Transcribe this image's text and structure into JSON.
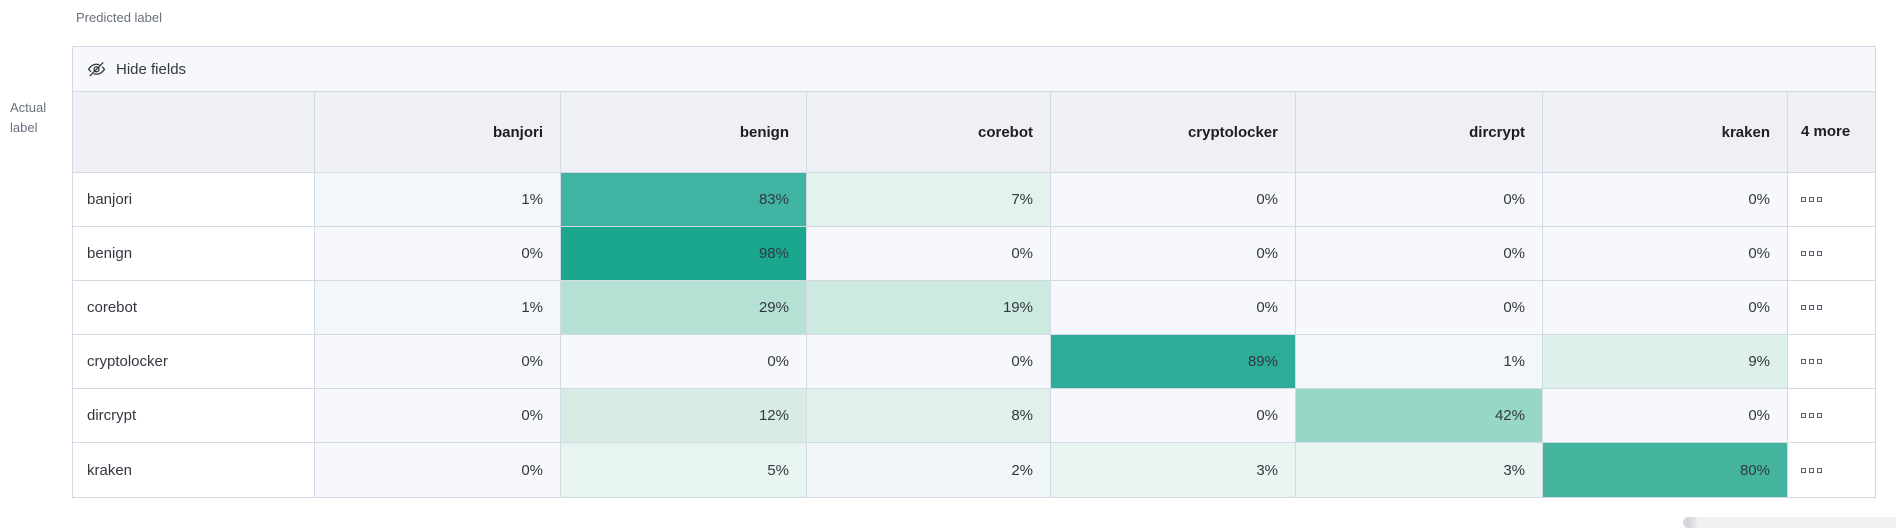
{
  "labels": {
    "predicted": "Predicted label",
    "actual": "Actual label"
  },
  "toolbar": {
    "hide_fields": "Hide fields",
    "icon": "eye-closed-icon"
  },
  "matrix": {
    "columns": [
      "banjori",
      "benign",
      "corebot",
      "cryptolocker",
      "dircrypt",
      "kraken"
    ],
    "more_header": "4 more",
    "more_cell_icon": "boxes-horizontal-icon",
    "rows": [
      {
        "label": "banjori",
        "cells": [
          {
            "text": "1%",
            "bg": "#f2f7f9"
          },
          {
            "text": "83%",
            "bg": "#41b3a2"
          },
          {
            "text": "7%",
            "bg": "#e2f2ed"
          },
          {
            "text": "0%",
            "bg": "#f6f8fc"
          },
          {
            "text": "0%",
            "bg": "#f6f8fc"
          },
          {
            "text": "0%",
            "bg": "#f6f8fc"
          }
        ]
      },
      {
        "label": "benign",
        "cells": [
          {
            "text": "0%",
            "bg": "#f6f8fc"
          },
          {
            "text": "98%",
            "bg": "#1aa78e"
          },
          {
            "text": "0%",
            "bg": "#f6f8fc"
          },
          {
            "text": "0%",
            "bg": "#f6f8fc"
          },
          {
            "text": "0%",
            "bg": "#f6f8fc"
          },
          {
            "text": "0%",
            "bg": "#f6f8fc"
          }
        ]
      },
      {
        "label": "corebot",
        "cells": [
          {
            "text": "1%",
            "bg": "#f2f7f9"
          },
          {
            "text": "29%",
            "bg": "#b5e0d4"
          },
          {
            "text": "19%",
            "bg": "#cdeae0"
          },
          {
            "text": "0%",
            "bg": "#f6f8fc"
          },
          {
            "text": "0%",
            "bg": "#f6f8fc"
          },
          {
            "text": "0%",
            "bg": "#f6f8fc"
          }
        ]
      },
      {
        "label": "cryptolocker",
        "cells": [
          {
            "text": "0%",
            "bg": "#f6f8fc"
          },
          {
            "text": "0%",
            "bg": "#f6f8fc"
          },
          {
            "text": "0%",
            "bg": "#f6f8fc"
          },
          {
            "text": "89%",
            "bg": "#2dac97"
          },
          {
            "text": "1%",
            "bg": "#f2f7f9"
          },
          {
            "text": "9%",
            "bg": "#ddf0ea"
          }
        ]
      },
      {
        "label": "dircrypt",
        "cells": [
          {
            "text": "0%",
            "bg": "#f6f8fc"
          },
          {
            "text": "12%",
            "bg": "#d7ede4"
          },
          {
            "text": "8%",
            "bg": "#e0f1eb"
          },
          {
            "text": "0%",
            "bg": "#f6f8fc"
          },
          {
            "text": "42%",
            "bg": "#97d7c5"
          },
          {
            "text": "0%",
            "bg": "#f6f8fc"
          }
        ]
      },
      {
        "label": "kraken",
        "cells": [
          {
            "text": "0%",
            "bg": "#f6f8fc"
          },
          {
            "text": "5%",
            "bg": "#e7f4ef"
          },
          {
            "text": "2%",
            "bg": "#f0f6f7"
          },
          {
            "text": "3%",
            "bg": "#eaf4f1"
          },
          {
            "text": "3%",
            "bg": "#eaf4f1"
          },
          {
            "text": "80%",
            "bg": "#44b49f"
          }
        ]
      }
    ]
  },
  "colors": {
    "border": "#d3dae6",
    "header_bg": "#eef0f6",
    "toolbar_bg": "#f7f8fc",
    "text": "#343741",
    "muted_text": "#69707d",
    "heat_max": "#1aa78e",
    "heat_min": "#f6f8fc"
  },
  "chart_data": {
    "type": "heatmap",
    "x_label": "Predicted label",
    "y_label": "Actual label",
    "x_categories": [
      "banjori",
      "benign",
      "corebot",
      "cryptolocker",
      "dircrypt",
      "kraken"
    ],
    "y_categories": [
      "banjori",
      "benign",
      "corebot",
      "cryptolocker",
      "dircrypt",
      "kraken"
    ],
    "values_percent": [
      [
        1,
        83,
        7,
        0,
        0,
        0
      ],
      [
        0,
        98,
        0,
        0,
        0,
        0
      ],
      [
        1,
        29,
        19,
        0,
        0,
        0
      ],
      [
        0,
        0,
        0,
        89,
        1,
        9
      ],
      [
        0,
        12,
        8,
        0,
        42,
        0
      ],
      [
        0,
        5,
        2,
        3,
        3,
        80
      ]
    ],
    "hidden_columns_indicator": "4 more",
    "legend": "none",
    "color_scale": [
      "#f6f8fc",
      "#1aa78e"
    ]
  }
}
